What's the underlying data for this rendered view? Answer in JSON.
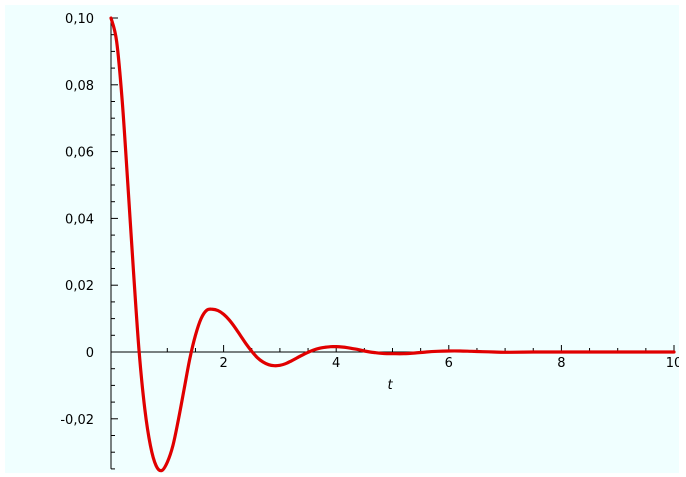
{
  "chart_data": {
    "type": "line",
    "title": "",
    "xlabel": "t",
    "ylabel": "",
    "xlim": [
      0,
      10
    ],
    "ylim": [
      -0.035,
      0.1
    ],
    "x_ticks": [
      2,
      4,
      6,
      8,
      10
    ],
    "x_tick_labels": [
      "2",
      "4",
      "6",
      "8",
      "10"
    ],
    "y_ticks": [
      -0.02,
      0,
      0.02,
      0.04,
      0.06,
      0.08,
      0.1
    ],
    "y_tick_labels": [
      "-0,02",
      "0",
      "0,02",
      "0,04",
      "0,06",
      "0,08",
      "0,10"
    ],
    "grid": false,
    "series": [
      {
        "color": "#e00000",
        "x": [
          0,
          0.1,
          0.2,
          0.3,
          0.4,
          0.5,
          0.6,
          0.7,
          0.8,
          0.9,
          1.0,
          1.1,
          1.2,
          1.3,
          1.4,
          1.5,
          1.6,
          1.7,
          1.8,
          1.9,
          2.0,
          2.1,
          2.2,
          2.3,
          2.4,
          2.5,
          2.6,
          2.7,
          2.8,
          2.9,
          3.0,
          3.1,
          3.2,
          3.3,
          3.4,
          3.5,
          3.6,
          3.7,
          3.8,
          3.9,
          4.0,
          4.1,
          4.2,
          4.3,
          4.4,
          4.5,
          4.6,
          4.7,
          4.8,
          4.9,
          5.0,
          5.2,
          5.4,
          5.6,
          5.8,
          6.0,
          6.2,
          6.4,
          6.6,
          6.8,
          7.0,
          7.5,
          8.0,
          8.5,
          9.0,
          9.5,
          10.0
        ],
        "y": [
          0.1,
          0.093,
          0.075,
          0.05,
          0.024,
          0.0,
          -0.017,
          -0.028,
          -0.034,
          -0.0355,
          -0.033,
          -0.028,
          -0.02,
          -0.011,
          -0.002,
          0.005,
          0.01,
          0.0125,
          0.0128,
          0.0124,
          0.0113,
          0.0096,
          0.0074,
          0.0049,
          0.0024,
          0.0002,
          -0.0017,
          -0.003,
          -0.0038,
          -0.0041,
          -0.004,
          -0.0035,
          -0.0027,
          -0.0018,
          -0.0009,
          -0.0001,
          0.0006,
          0.0011,
          0.0014,
          0.0016,
          0.0016,
          0.0015,
          0.0013,
          0.001,
          0.0007,
          0.0003,
          0.0,
          -0.0002,
          -0.0004,
          -0.0005,
          -0.0005,
          -0.0005,
          -0.0003,
          0.0,
          0.0002,
          0.0003,
          0.0003,
          0.0002,
          0.0001,
          0.0,
          -0.0001,
          0.0,
          0.0,
          0.0,
          0.0,
          0.0,
          0.0
        ]
      }
    ]
  }
}
